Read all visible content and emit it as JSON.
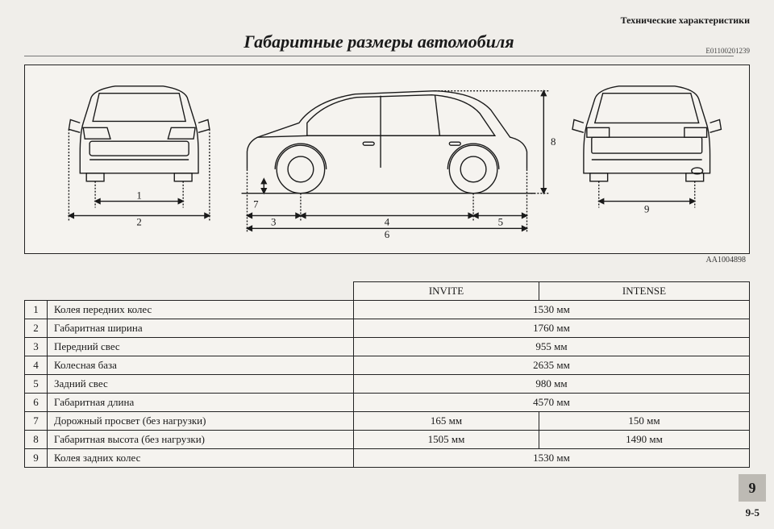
{
  "header_label": "Технические характеристики",
  "title": "Габаритные размеры автомобиля",
  "doc_code": "E01100201239",
  "diagram": {
    "ref": "AA1004898",
    "stroke": "#1a1a1a",
    "stroke_width": 1.4,
    "dim_labels": [
      "1",
      "2",
      "3",
      "4",
      "5",
      "6",
      "7",
      "8",
      "9"
    ]
  },
  "table": {
    "headers": [
      "INVITE",
      "INTENSE"
    ],
    "rows": [
      {
        "n": "1",
        "label": "Колея передних колес",
        "v1": "1530 мм",
        "merged": true
      },
      {
        "n": "2",
        "label": "Габаритная ширина",
        "v1": "1760 мм",
        "merged": true
      },
      {
        "n": "3",
        "label": "Передний свес",
        "v1": "955 мм",
        "merged": true
      },
      {
        "n": "4",
        "label": "Колесная база",
        "v1": "2635 мм",
        "merged": true
      },
      {
        "n": "5",
        "label": "Задний свес",
        "v1": "980 мм",
        "merged": true
      },
      {
        "n": "6",
        "label": "Габаритная длина",
        "v1": "4570 мм",
        "merged": true
      },
      {
        "n": "7",
        "label": "Дорожный просвет (без нагрузки)",
        "v1": "165 мм",
        "v2": "150 мм",
        "merged": false
      },
      {
        "n": "8",
        "label": "Габаритная высота (без нагрузки)",
        "v1": "1505 мм",
        "v2": "1490 мм",
        "merged": false
      },
      {
        "n": "9",
        "label": "Колея задних колес",
        "v1": "1530 мм",
        "merged": true
      }
    ]
  },
  "chapter_tab": "9",
  "page_number": "9-5"
}
